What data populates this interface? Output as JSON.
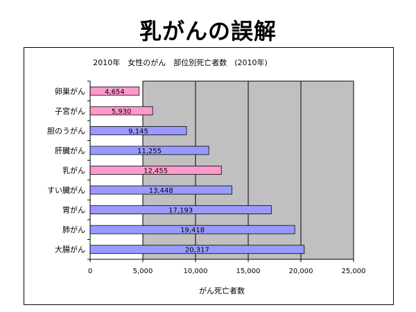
{
  "slide": {
    "title": "乳がんの誤解"
  },
  "chart_data": {
    "type": "bar",
    "orientation": "horizontal",
    "title": "2010年　女性のがん　部位別死亡者数　(2010年)",
    "xlabel": "がん死亡者数",
    "ylabel": "",
    "xlim": [
      0,
      25000
    ],
    "x_ticks": [
      0,
      5000,
      10000,
      15000,
      20000,
      25000
    ],
    "x_tick_labels": [
      "0",
      "5,000",
      "10,000",
      "15,000",
      "20,000",
      "25,000"
    ],
    "grid": true,
    "categories": [
      "卵巣がん",
      "子宮がん",
      "胆のうがん",
      "肝臓がん",
      "乳がん",
      "すい臓がん",
      "胃がん",
      "肺がん",
      "大腸がん"
    ],
    "values": [
      4654,
      5930,
      9145,
      11255,
      12455,
      13448,
      17193,
      19418,
      20317
    ],
    "value_labels": [
      "4,654",
      "5,930",
      "9,145",
      "11,255",
      "12,455",
      "13,448",
      "17,193",
      "19,418",
      "20,317"
    ],
    "bar_colors": [
      "#ff99cc",
      "#ff99cc",
      "#9999ff",
      "#9999ff",
      "#ff99cc",
      "#9999ff",
      "#9999ff",
      "#9999ff",
      "#9999ff"
    ],
    "plot_background": "#c0c0c0"
  }
}
